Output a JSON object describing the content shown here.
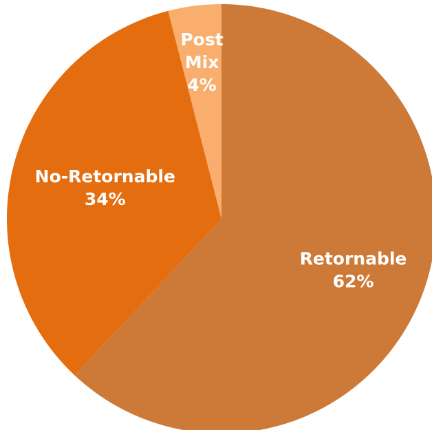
{
  "chart_data": {
    "type": "pie",
    "title": "",
    "start_angle_deg": 0,
    "direction": "clockwise",
    "legend": "none",
    "slices": [
      {
        "name": "Retornable",
        "label_lines": [
          "Retornable",
          "62%"
        ],
        "value": 62,
        "color": "#CD7A38"
      },
      {
        "name": "No-Retornable",
        "label_lines": [
          "No-Retornable",
          "34%"
        ],
        "value": 34,
        "color": "#E46D10"
      },
      {
        "name": "Post Mix",
        "label_lines": [
          "Post",
          "Mix",
          "4%"
        ],
        "value": 4,
        "color": "#F9AE6E"
      }
    ]
  }
}
